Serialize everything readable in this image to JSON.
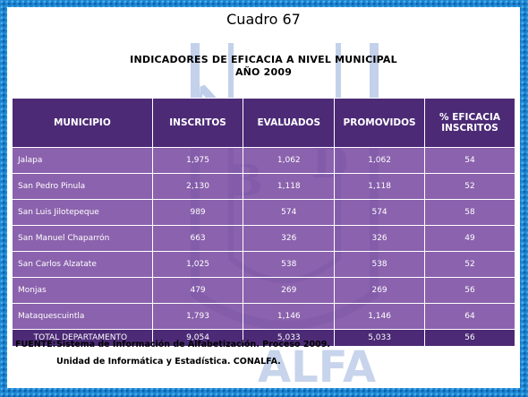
{
  "title": "Cuadro 67",
  "subtitle_line1": "INDICADORES DE EFICACIA A NIVEL MUNICIPAL",
  "subtitle_line2": "AÑO 2009",
  "table": {
    "headers": [
      "MUNICIPIO",
      "INSCRITOS",
      "EVALUADOS",
      "PROMOVIDOS",
      "% EFICACIA INSCRITOS"
    ],
    "rows": [
      [
        "Jalapa",
        "1,975",
        "1,062",
        "1,062",
        "54"
      ],
      [
        "San Pedro Pinula",
        "2,130",
        "1,118",
        "1,118",
        "52"
      ],
      [
        "San Luis Jilotepeque",
        "989",
        "574",
        "574",
        "58"
      ],
      [
        "San Manuel Chaparrón",
        "663",
        "326",
        "326",
        "49"
      ],
      [
        "San Carlos Alzatate",
        "1,025",
        "538",
        "538",
        "52"
      ],
      [
        "Monjas",
        "479",
        "269",
        "269",
        "56"
      ],
      [
        "Mataquescuintla",
        "1,793",
        "1,146",
        "1,146",
        "64"
      ]
    ],
    "total": [
      "TOTAL DEPARTAMENTO",
      "9,054",
      "5,033",
      "5,033",
      "56"
    ]
  },
  "source": {
    "label": "FUENTE:",
    "line1": "Sistema de Información de Alfabetización. Proceso 2009.",
    "line2": "Unidad de Informática y Estadística. CONALFA."
  },
  "watermark_text": "CONALFA",
  "colors": {
    "frame": "#1b86d0",
    "header": "#4c2a76",
    "cell": "#7848a0",
    "watermark": "#9fb6dc"
  }
}
